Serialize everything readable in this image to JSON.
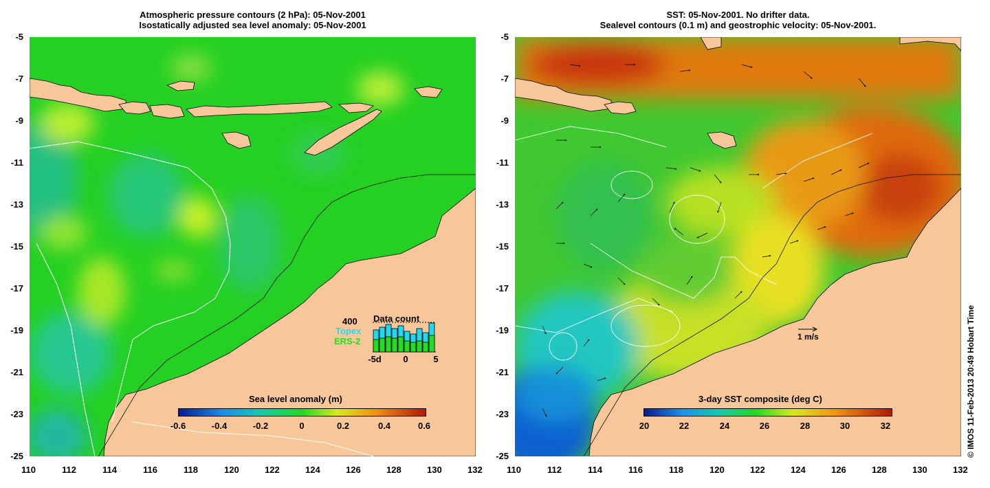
{
  "left_panel": {
    "title_line1": "Atmospheric pressure contours (2 hPa): 05-Nov-2001",
    "title_line2": "Isostatically adjusted sea level anomaly: 05-Nov-2001",
    "colorbar_label": "Sea level anomaly (m)",
    "colorbar_ticks": [
      "-0.6",
      "-0.4",
      "-0.2",
      "0",
      "0.2",
      "0.4",
      "0.6"
    ],
    "data_count": {
      "title": "Data count",
      "max_label": "400",
      "topex_label": "Topex",
      "ers2_label": "ERS-2",
      "axis_ticks": [
        "-5d",
        "0",
        "5"
      ],
      "topex_color": "#22d8f0",
      "ers2_color": "#22dd22"
    }
  },
  "right_panel": {
    "title_line1": "SST: 05-Nov-2001. No drifter data.",
    "title_line2": "Sealevel contours (0.1 m) and geostrophic velocity: 05-Nov-2001.",
    "colorbar_label": "3-day SST composite (deg C)",
    "colorbar_ticks": [
      "20",
      "22",
      "24",
      "26",
      "28",
      "30",
      "32"
    ],
    "velocity_scale_label": "1 m/s"
  },
  "axes": {
    "lat_ticks": [
      "-5",
      "-7",
      "-9",
      "-11",
      "-13",
      "-15",
      "-17",
      "-19",
      "-21",
      "-23",
      "-25"
    ],
    "lon_ticks": [
      "110",
      "112",
      "114",
      "116",
      "118",
      "120",
      "122",
      "124",
      "126",
      "128",
      "130",
      "132"
    ]
  },
  "credit": "© IMOS 11-Feb-2013 20:49 Hobart Time",
  "colors": {
    "land": "#f7c79a",
    "ocean_green": "#20d820"
  }
}
